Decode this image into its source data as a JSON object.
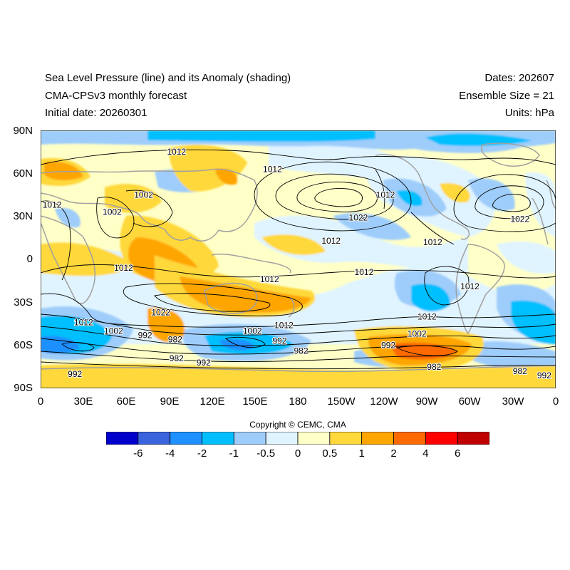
{
  "header": {
    "title": "Sea Level Pressure (line) and its Anomaly (shading)",
    "model": "CMA-CPSv3 monthly forecast",
    "initial": "Initial date: 20260301",
    "dates": "Dates: 202607",
    "ensemble": "Ensemble Size = 21",
    "units": "Units: hPa"
  },
  "axes": {
    "lat_labels": [
      "90N",
      "60N",
      "30N",
      "0",
      "30S",
      "60S",
      "90S"
    ],
    "lon_labels": [
      "0",
      "30E",
      "60E",
      "90E",
      "120E",
      "150E",
      "180",
      "150W",
      "120W",
      "90W",
      "60W",
      "30W",
      "0"
    ]
  },
  "map": {
    "projection": "cylindrical equidistant, global",
    "extent": {
      "lon": [
        0,
        360
      ],
      "lat": [
        -90,
        90
      ]
    },
    "contour_labels": [
      {
        "text": "1012",
        "lon": 95,
        "lat": 75
      },
      {
        "text": "1012",
        "lon": 162,
        "lat": 63
      },
      {
        "text": "1012",
        "lon": 8,
        "lat": 38
      },
      {
        "text": "1002",
        "lon": 72,
        "lat": 45
      },
      {
        "text": "1002",
        "lon": 50,
        "lat": 33
      },
      {
        "text": "1012",
        "lon": 241,
        "lat": 45
      },
      {
        "text": "1022",
        "lon": 222,
        "lat": 29
      },
      {
        "text": "1012",
        "lon": 203,
        "lat": 13
      },
      {
        "text": "1022",
        "lon": 335,
        "lat": 28
      },
      {
        "text": "1012",
        "lon": 274,
        "lat": 12
      },
      {
        "text": "1012",
        "lon": 58,
        "lat": -6
      },
      {
        "text": "1012",
        "lon": 160,
        "lat": -14
      },
      {
        "text": "1012",
        "lon": 226,
        "lat": -9
      },
      {
        "text": "1012",
        "lon": 300,
        "lat": -19
      },
      {
        "text": "1022",
        "lon": 84,
        "lat": -37
      },
      {
        "text": "1012",
        "lon": 30,
        "lat": -44
      },
      {
        "text": "1002",
        "lon": 51,
        "lat": -50
      },
      {
        "text": "992",
        "lon": 73,
        "lat": -53
      },
      {
        "text": "982",
        "lon": 94,
        "lat": -56
      },
      {
        "text": "1002",
        "lon": 148,
        "lat": -50
      },
      {
        "text": "1012",
        "lon": 170,
        "lat": -46
      },
      {
        "text": "992",
        "lon": 167,
        "lat": -57
      },
      {
        "text": "982",
        "lon": 182,
        "lat": -64
      },
      {
        "text": "1012",
        "lon": 270,
        "lat": -40
      },
      {
        "text": "1002",
        "lon": 263,
        "lat": -52
      },
      {
        "text": "992",
        "lon": 243,
        "lat": -60
      },
      {
        "text": "982",
        "lon": 275,
        "lat": -75
      },
      {
        "text": "982",
        "lon": 95,
        "lat": -69
      },
      {
        "text": "992",
        "lon": 114,
        "lat": -72
      },
      {
        "text": "992",
        "lon": 24,
        "lat": -80
      },
      {
        "text": "982",
        "lon": 335,
        "lat": -78
      },
      {
        "text": "992",
        "lon": 352,
        "lat": -81
      }
    ]
  },
  "copyright": "Copyright © CEMC, CMA",
  "colorbar": {
    "colors": [
      "#0000cd",
      "#3a63dc",
      "#1e90ff",
      "#00bfff",
      "#9fcdfb",
      "#e0f4ff",
      "#ffffc8",
      "#ffd83b",
      "#ffa500",
      "#ff6a00",
      "#ff0000",
      "#c00000"
    ],
    "labels": [
      "-6",
      "-4",
      "-2",
      "-1",
      "-0.5",
      "0",
      "0.5",
      "1",
      "2",
      "4",
      "6"
    ],
    "levels": [
      -6,
      -4,
      -2,
      -1,
      -0.5,
      0,
      0.5,
      1,
      2,
      4,
      6
    ]
  }
}
